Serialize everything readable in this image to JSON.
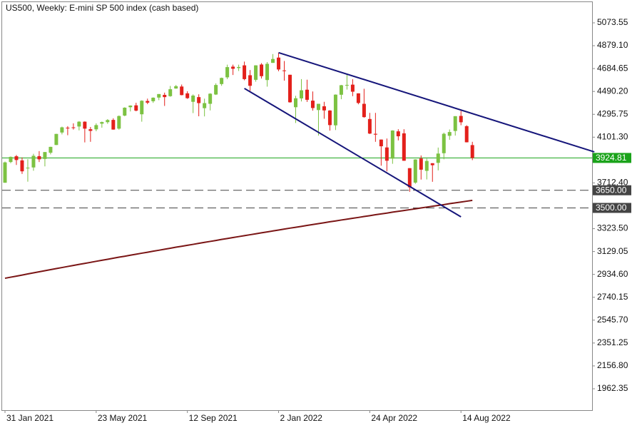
{
  "chart_data": {
    "type": "candlestick",
    "title": "US500, Weekly:  E-mini SP 500 index (cash based)",
    "categories": [
      "31 Jan 2021",
      null,
      null,
      null,
      null,
      null,
      null,
      null,
      null,
      null,
      null,
      null,
      null,
      null,
      null,
      null,
      "23 May 2021",
      null,
      null,
      null,
      null,
      null,
      null,
      null,
      null,
      null,
      null,
      null,
      null,
      null,
      null,
      null,
      "12 Sep 2021",
      null,
      null,
      null,
      null,
      null,
      null,
      null,
      null,
      null,
      null,
      null,
      null,
      null,
      null,
      null,
      "2 Jan 2022",
      null,
      null,
      null,
      null,
      null,
      null,
      null,
      null,
      null,
      null,
      null,
      null,
      null,
      null,
      null,
      "24 Apr 2022",
      null,
      null,
      null,
      null,
      null,
      null,
      null,
      null,
      null,
      null,
      null,
      null,
      null,
      null,
      null,
      "14 Aug 2022",
      null,
      null
    ],
    "ohlc": [
      [
        3714,
        3894,
        3714,
        3887
      ],
      [
        3890,
        3937,
        3880,
        3934
      ],
      [
        3939,
        3950,
        3865,
        3907
      ],
      [
        3904,
        3929,
        3789,
        3811
      ],
      [
        3840,
        3915,
        3723,
        3842
      ],
      [
        3844,
        3960,
        3816,
        3943
      ],
      [
        3940,
        3983,
        3890,
        3913
      ],
      [
        3916,
        3974,
        3853,
        3975
      ],
      [
        3969,
        4020,
        3955,
        4019
      ],
      [
        4035,
        4130,
        4034,
        4129
      ],
      [
        4141,
        4191,
        4125,
        4185
      ],
      [
        4182,
        4195,
        4118,
        4180
      ],
      [
        4185,
        4219,
        4166,
        4181
      ],
      [
        4192,
        4238,
        4159,
        4233
      ],
      [
        4233,
        4236,
        4057,
        4174
      ],
      [
        4169,
        4188,
        4062,
        4155
      ],
      [
        4168,
        4219,
        4152,
        4204
      ],
      [
        4216,
        4234,
        4182,
        4230
      ],
      [
        4229,
        4255,
        4215,
        4247
      ],
      [
        4248,
        4262,
        4165,
        4166
      ],
      [
        4174,
        4286,
        4165,
        4281
      ],
      [
        4285,
        4356,
        4279,
        4352
      ],
      [
        4356,
        4372,
        4320,
        4370
      ],
      [
        4372,
        4394,
        4321,
        4327
      ],
      [
        4296,
        4415,
        4233,
        4411
      ],
      [
        4409,
        4429,
        4382,
        4395
      ],
      [
        4407,
        4440,
        4393,
        4437
      ],
      [
        4438,
        4468,
        4416,
        4468
      ],
      [
        4461,
        4480,
        4367,
        4442
      ],
      [
        4450,
        4537,
        4445,
        4509
      ],
      [
        4515,
        4545,
        4513,
        4535
      ],
      [
        4532,
        4549,
        4457,
        4459
      ],
      [
        4474,
        4492,
        4427,
        4433
      ],
      [
        4402,
        4465,
        4306,
        4455
      ],
      [
        4442,
        4466,
        4279,
        4391
      ],
      [
        4348,
        4429,
        4278,
        4391
      ],
      [
        4385,
        4475,
        4329,
        4471
      ],
      [
        4464,
        4559,
        4460,
        4545
      ],
      [
        4553,
        4608,
        4538,
        4605
      ],
      [
        4610,
        4718,
        4595,
        4697
      ],
      [
        4701,
        4718,
        4630,
        4683
      ],
      [
        4689,
        4718,
        4664,
        4698
      ],
      [
        4712,
        4744,
        4585,
        4595
      ],
      [
        4628,
        4672,
        4495,
        4538
      ],
      [
        4589,
        4713,
        4573,
        4712
      ],
      [
        4719,
        4731,
        4600,
        4620
      ],
      [
        4587,
        4740,
        4531,
        4725
      ],
      [
        4733,
        4808,
        4733,
        4766
      ],
      [
        4778,
        4819,
        4662,
        4677
      ],
      [
        4669,
        4749,
        4582,
        4663
      ],
      [
        4632,
        4632,
        4395,
        4398
      ],
      [
        4356,
        4453,
        4222,
        4432
      ],
      [
        4431,
        4595,
        4405,
        4500
      ],
      [
        4505,
        4590,
        4401,
        4419
      ],
      [
        4412,
        4490,
        4327,
        4349
      ],
      [
        4332,
        4385,
        4115,
        4385
      ],
      [
        4364,
        4402,
        4258,
        4329
      ],
      [
        4328,
        4331,
        4157,
        4204
      ],
      [
        4202,
        4465,
        4162,
        4463
      ],
      [
        4462,
        4546,
        4424,
        4543
      ],
      [
        4541,
        4637,
        4506,
        4546
      ],
      [
        4548,
        4594,
        4450,
        4488
      ],
      [
        4474,
        4474,
        4381,
        4392
      ],
      [
        4385,
        4513,
        4267,
        4272
      ],
      [
        4256,
        4308,
        4128,
        4132
      ],
      [
        4130,
        4308,
        4062,
        4123
      ],
      [
        4081,
        4082,
        3859,
        4024
      ],
      [
        4014,
        4090,
        3811,
        3901
      ],
      [
        3919,
        4160,
        3875,
        4158
      ],
      [
        4151,
        4169,
        4074,
        4109
      ],
      [
        4134,
        4169,
        3900,
        3901
      ],
      [
        3838,
        3838,
        3637,
        3675
      ],
      [
        3715,
        3914,
        3705,
        3912
      ],
      [
        3920,
        3946,
        3741,
        3825
      ],
      [
        3815,
        3919,
        3742,
        3899
      ],
      [
        3880,
        3880,
        3722,
        3863
      ],
      [
        3883,
        4013,
        3819,
        3962
      ],
      [
        3965,
        4140,
        3913,
        4130
      ],
      [
        4113,
        4167,
        4079,
        4145
      ],
      [
        4154,
        4280,
        4115,
        4280
      ],
      [
        4282,
        4325,
        4203,
        4228
      ],
      [
        4195,
        4203,
        4057,
        4058
      ],
      [
        4034,
        4062,
        3906,
        3924.81
      ]
    ],
    "up_color": "#7cc242",
    "down_color": "#e3201b",
    "ma": {
      "color": "#7a1515",
      "values": [
        2902,
        2911,
        2920,
        2929,
        2939,
        2948,
        2957,
        2966,
        2975,
        2984,
        2993,
        3002,
        3011,
        3020,
        3028,
        3037,
        3046,
        3055,
        3063,
        3072,
        3081,
        3089,
        3098,
        3106,
        3115,
        3123,
        3132,
        3140,
        3149,
        3157,
        3166,
        3174,
        3182,
        3190,
        3199,
        3207,
        3215,
        3223,
        3232,
        3240,
        3248,
        3256,
        3264,
        3272,
        3280,
        3288,
        3296,
        3304,
        3312,
        3320,
        3328,
        3335,
        3343,
        3351,
        3359,
        3366,
        3374,
        3382,
        3389,
        3397,
        3404,
        3412,
        3419,
        3427,
        3434,
        3442,
        3449,
        3456,
        3464,
        3471,
        3478,
        3485,
        3492,
        3500,
        3507,
        3514,
        3521,
        3528,
        3536,
        3543,
        3550,
        3557,
        3564
      ]
    },
    "trendlines": [
      {
        "color": "#15157a",
        "x": [
          48,
          103.4
        ],
        "values": [
          4820,
          3976
        ]
      },
      {
        "color": "#15157a",
        "x": [
          42,
          80
        ],
        "values": [
          4516,
          3424
        ]
      }
    ],
    "levels": [
      {
        "value": 3924.81,
        "color": "#1aa31a",
        "style": "solid"
      },
      {
        "value": 3650,
        "label": "3650.00",
        "color": "#444444",
        "style": "dashed"
      },
      {
        "value": 3500,
        "label": "3500.00",
        "color": "#444444",
        "style": "dashed"
      }
    ],
    "xlim": [
      -0.5,
      103
    ],
    "ylim": [
      1780.4,
      5249.4
    ],
    "yticks": [
      5073.55,
      {
        "value": 4879.1,
        "label": "4879.10"
      },
      4684.65,
      {
        "value": 4490.2,
        "label": "4490.20"
      },
      4295.75,
      {
        "value": 4101.3,
        "label": "4101.30"
      },
      {
        "value": 3712.4,
        "label": "3712.40"
      },
      {
        "value": 3323.5,
        "label": "3323.50"
      },
      3129.05,
      {
        "value": 2934.6,
        "label": "2934.60"
      },
      2740.15,
      {
        "value": 2545.7,
        "label": "2545.70"
      },
      2351.25,
      {
        "value": 2156.8,
        "label": "2156.80"
      },
      1962.35
    ]
  }
}
